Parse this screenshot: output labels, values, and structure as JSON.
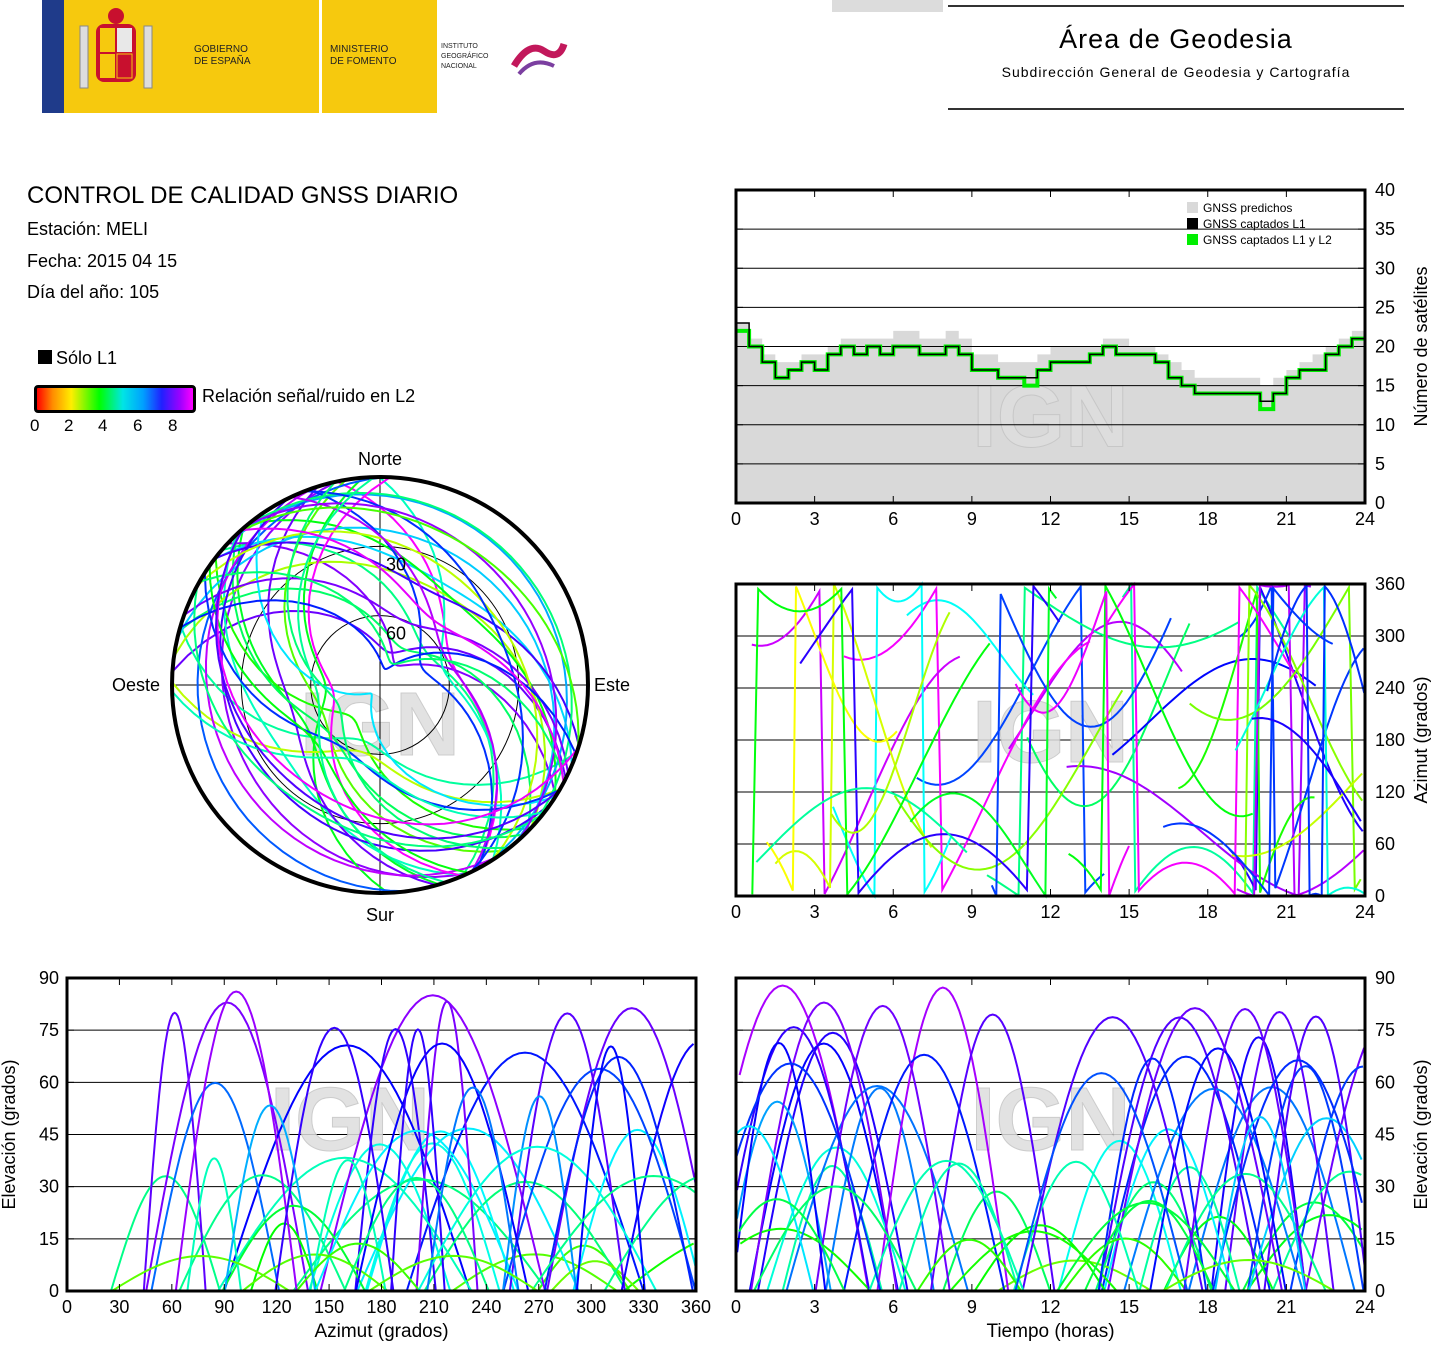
{
  "header": {
    "gov_line1": "GOBIERNO",
    "gov_line2": "DE ESPAÑA",
    "min_line1": "MINISTERIO",
    "min_line2": "DE FOMENTO",
    "ign_line1": "INSTITUTO",
    "ign_line2": "GEOGRÁFICO",
    "ign_line3": "NACIONAL",
    "area_title": "Área de Geodesia",
    "area_subtitle": "Subdirección General de Geodesia y Cartografía"
  },
  "report": {
    "title": "CONTROL DE CALIDAD GNSS DIARIO",
    "station": "Estación: MELI",
    "date": "Fecha: 2015 04 15",
    "doy": "Día del año: 105",
    "legend_l1only": "Sólo L1",
    "colorbar_label": "Relación señal/ruido en L2",
    "colorbar_ticks": [
      "0",
      "2",
      "4",
      "6",
      "8"
    ]
  },
  "colors": {
    "predicted": "#d9d9d9",
    "l1": "#000000",
    "l1l2": "#00ee00"
  },
  "chart_data": [
    {
      "id": "satellites",
      "type": "area",
      "xlim": [
        0,
        24
      ],
      "ylim": [
        0,
        40
      ],
      "xticks": [
        0,
        3,
        6,
        9,
        12,
        15,
        18,
        21,
        24
      ],
      "yticks": [
        0,
        5,
        10,
        15,
        20,
        25,
        30,
        35,
        40
      ],
      "ylabel": "Número de satélites",
      "legend": [
        "GNSS predichos",
        "GNSS captados L1",
        "GNSS captados L1 y L2"
      ],
      "legend_position": "top-right",
      "watermark": "IGN",
      "series": [
        {
          "name": "GNSS predichos",
          "x": [
            0,
            0.5,
            1,
            1.5,
            2,
            2.5,
            3,
            3.5,
            4,
            4.5,
            5,
            5.5,
            6,
            6.5,
            7,
            7.5,
            8,
            8.5,
            9,
            9.5,
            10,
            10.5,
            11,
            11.5,
            12,
            12.5,
            13,
            13.5,
            14,
            14.5,
            15,
            15.5,
            16,
            16.5,
            17,
            17.5,
            18,
            18.5,
            19,
            19.5,
            20,
            20.5,
            21,
            21.5,
            22,
            22.5,
            23,
            23.5,
            24
          ],
          "y": [
            23,
            21,
            19,
            18,
            18,
            19,
            19,
            20,
            21,
            21,
            21,
            21,
            22,
            22,
            21,
            21,
            22,
            21,
            19,
            19,
            18,
            18,
            18,
            19,
            20,
            20,
            20,
            20,
            21,
            21,
            20,
            20,
            19,
            18,
            17,
            16,
            16,
            16,
            16,
            16,
            15,
            16,
            17,
            18,
            19,
            20,
            21,
            22,
            22
          ]
        },
        {
          "name": "GNSS captados L1",
          "x": [
            0,
            0.5,
            1,
            1.5,
            2,
            2.5,
            3,
            3.5,
            4,
            4.5,
            5,
            5.5,
            6,
            6.5,
            7,
            7.5,
            8,
            8.5,
            9,
            9.5,
            10,
            10.5,
            11,
            11.5,
            12,
            12.5,
            13,
            13.5,
            14,
            14.5,
            15,
            15.5,
            16,
            16.5,
            17,
            17.5,
            18,
            18.5,
            19,
            19.5,
            20,
            20.5,
            21,
            21.5,
            22,
            22.5,
            23,
            23.5,
            24
          ],
          "y": [
            23,
            20,
            18,
            16,
            17,
            18,
            17,
            19,
            20,
            19,
            20,
            19,
            20,
            20,
            19,
            19,
            20,
            19,
            17,
            17,
            16,
            16,
            16,
            17,
            18,
            18,
            18,
            19,
            20,
            19,
            19,
            19,
            18,
            16,
            15,
            14,
            14,
            14,
            14,
            14,
            13,
            14,
            16,
            17,
            17,
            19,
            20,
            21,
            21
          ]
        },
        {
          "name": "GNSS captados L1 y L2",
          "x": [
            0,
            0.5,
            1,
            1.5,
            2,
            2.5,
            3,
            3.5,
            4,
            4.5,
            5,
            5.5,
            6,
            6.5,
            7,
            7.5,
            8,
            8.5,
            9,
            9.5,
            10,
            10.5,
            11,
            11.5,
            12,
            12.5,
            13,
            13.5,
            14,
            14.5,
            15,
            15.5,
            16,
            16.5,
            17,
            17.5,
            18,
            18.5,
            19,
            19.5,
            20,
            20.5,
            21,
            21.5,
            22,
            22.5,
            23,
            23.5,
            24
          ],
          "y": [
            22,
            20,
            18,
            16,
            17,
            18,
            17,
            19,
            20,
            19,
            20,
            19,
            20,
            20,
            19,
            19,
            20,
            19,
            17,
            17,
            16,
            16,
            15,
            17,
            18,
            18,
            18,
            19,
            20,
            19,
            19,
            19,
            18,
            16,
            15,
            14,
            14,
            14,
            14,
            14,
            12,
            14,
            16,
            17,
            17,
            19,
            20,
            21,
            21
          ]
        }
      ]
    },
    {
      "id": "skyplot",
      "type": "scatter",
      "polar": true,
      "direction_labels": {
        "north": "Norte",
        "south": "Sur",
        "east": "Este",
        "west": "Oeste"
      },
      "ring_labels": [
        "30",
        "60"
      ],
      "watermark": "IGN"
    },
    {
      "id": "azimuth_time",
      "type": "scatter",
      "xlim": [
        0,
        24
      ],
      "ylim": [
        0,
        360
      ],
      "xticks": [
        0,
        3,
        6,
        9,
        12,
        15,
        18,
        21,
        24
      ],
      "yticks": [
        0,
        60,
        120,
        180,
        240,
        300,
        360
      ],
      "ylabel": "Azimut (grados)",
      "watermark": "IGN"
    },
    {
      "id": "elev_azimuth",
      "type": "scatter",
      "xlim": [
        0,
        360
      ],
      "ylim": [
        0,
        90
      ],
      "xticks": [
        0,
        30,
        60,
        90,
        120,
        150,
        180,
        210,
        240,
        270,
        300,
        330,
        360
      ],
      "yticks": [
        0,
        15,
        30,
        45,
        60,
        75,
        90
      ],
      "xlabel": "Azimut (grados)",
      "ylabel": "Elevación (grados)",
      "watermark": "IGN"
    },
    {
      "id": "elev_time",
      "type": "scatter",
      "xlim": [
        0,
        24
      ],
      "ylim": [
        0,
        90
      ],
      "xticks": [
        0,
        3,
        6,
        9,
        12,
        15,
        18,
        21,
        24
      ],
      "yticks": [
        0,
        15,
        30,
        45,
        60,
        75,
        90
      ],
      "xlabel": "Tiempo (horas)",
      "ylabel": "Elevación (grados)",
      "watermark": "IGN"
    }
  ]
}
